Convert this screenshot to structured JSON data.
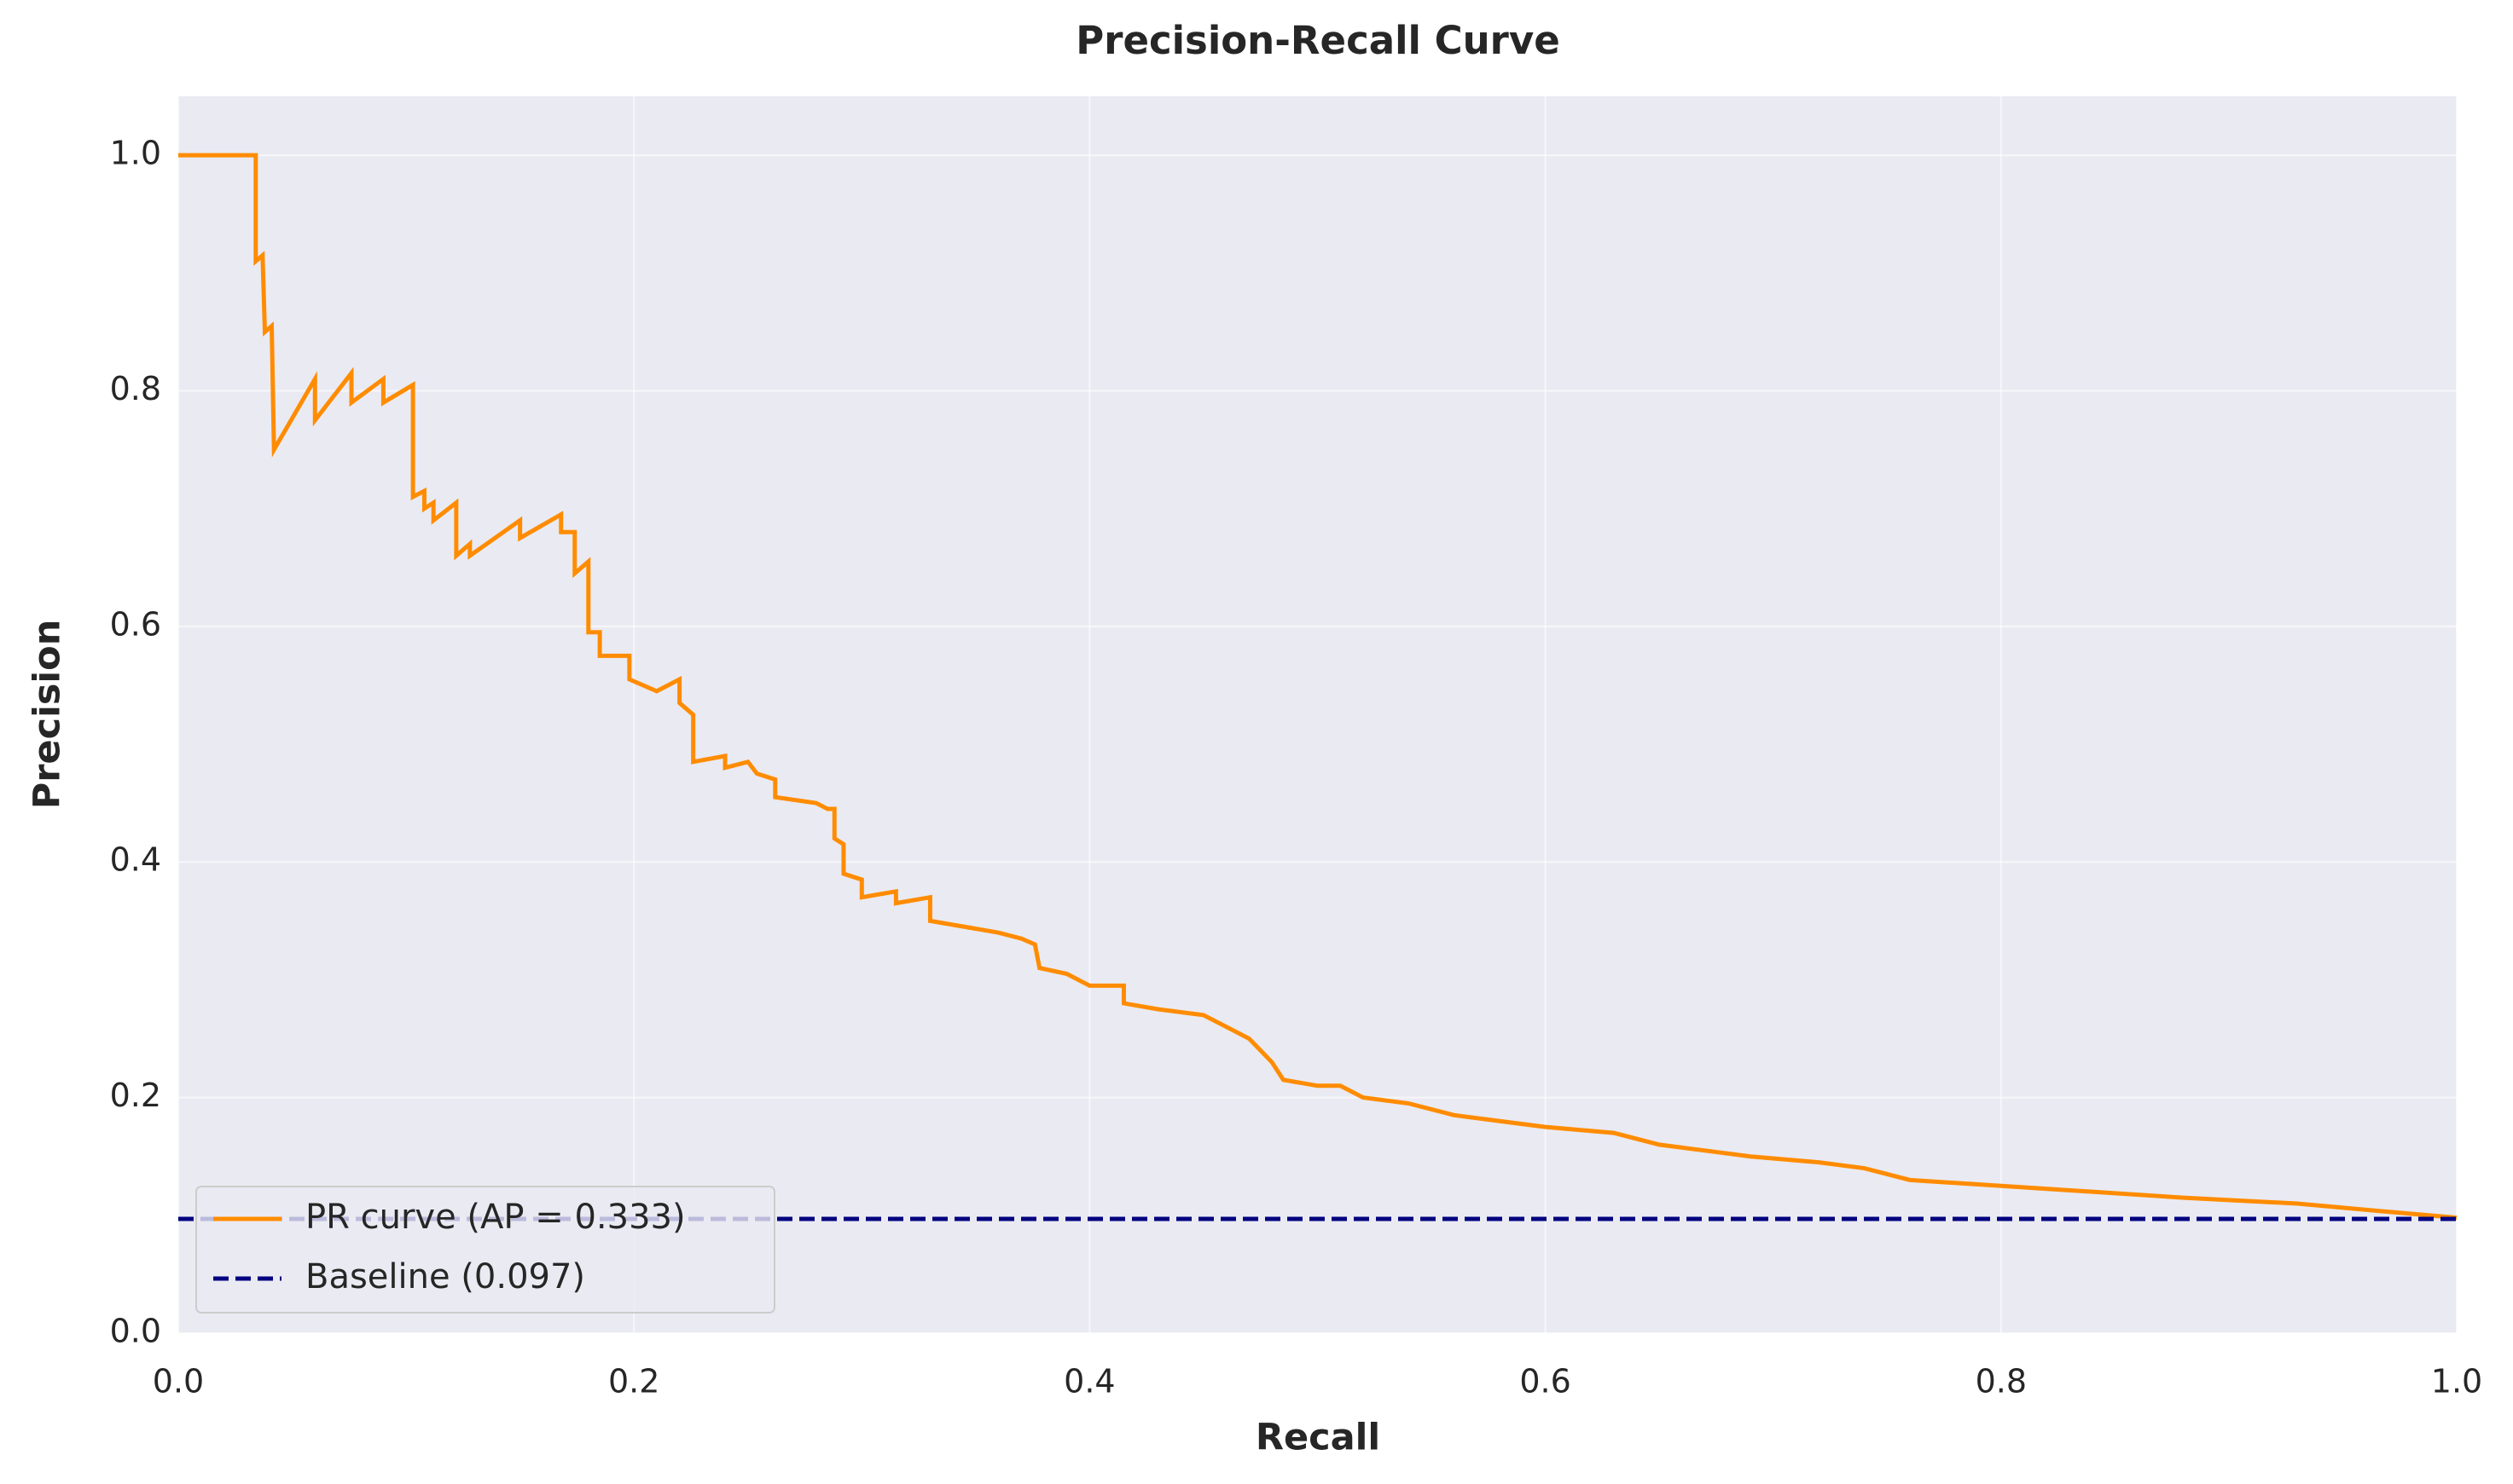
{
  "chart_data": {
    "type": "line",
    "title": "Precision-Recall Curve",
    "x_label": "Recall",
    "y_label": "Precision",
    "xlim": [
      0,
      1
    ],
    "ylim": [
      0,
      1.05
    ],
    "xticks": [
      {
        "value": 0,
        "label": "0.0"
      },
      0.2,
      0.4,
      0.6,
      0.8,
      {
        "value": 1,
        "label": "1.0"
      }
    ],
    "yticks": [
      {
        "value": 0,
        "label": "0.0"
      },
      0.2,
      0.4,
      0.6,
      0.8,
      {
        "value": 1,
        "label": "1.0"
      }
    ],
    "grid": true,
    "legend": "lower left",
    "series": [
      {
        "name": "PR curve (AP = 0.333)",
        "color": "#ff8c00",
        "dash": "solid",
        "x": [
          0,
          0.034,
          0.034,
          0.037,
          0.038,
          0.041,
          0.042,
          0.06,
          0.06,
          0.076,
          0.076,
          0.09,
          0.09,
          0.103,
          0.103,
          0.108,
          0.108,
          0.112,
          0.112,
          0.122,
          0.122,
          0.128,
          0.128,
          0.15,
          0.15,
          0.168,
          0.168,
          0.174,
          0.174,
          0.18,
          0.18,
          0.185,
          0.185,
          0.198,
          0.198,
          0.21,
          0.22,
          0.22,
          0.226,
          0.226,
          0.24,
          0.24,
          0.25,
          0.254,
          0.262,
          0.262,
          0.28,
          0.285,
          0.288,
          0.288,
          0.292,
          0.292,
          0.3,
          0.3,
          0.315,
          0.315,
          0.33,
          0.33,
          0.345,
          0.36,
          0.37,
          0.376,
          0.378,
          0.39,
          0.4,
          0.415,
          0.415,
          0.43,
          0.45,
          0.46,
          0.47,
          0.48,
          0.485,
          0.5,
          0.51,
          0.52,
          0.54,
          0.56,
          0.58,
          0.6,
          0.63,
          0.65,
          0.67,
          0.69,
          0.72,
          0.74,
          0.76,
          0.8,
          0.84,
          0.88,
          0.93,
          0.97,
          1
        ],
        "values": [
          1,
          1,
          0.91,
          0.915,
          0.85,
          0.855,
          0.75,
          0.81,
          0.775,
          0.815,
          0.79,
          0.81,
          0.79,
          0.805,
          0.71,
          0.715,
          0.7,
          0.705,
          0.69,
          0.705,
          0.66,
          0.67,
          0.66,
          0.69,
          0.675,
          0.695,
          0.68,
          0.68,
          0.645,
          0.655,
          0.595,
          0.595,
          0.575,
          0.575,
          0.555,
          0.545,
          0.555,
          0.535,
          0.525,
          0.485,
          0.49,
          0.48,
          0.485,
          0.475,
          0.47,
          0.455,
          0.45,
          0.445,
          0.445,
          0.42,
          0.415,
          0.39,
          0.385,
          0.37,
          0.375,
          0.365,
          0.37,
          0.35,
          0.345,
          0.34,
          0.335,
          0.33,
          0.31,
          0.305,
          0.295,
          0.295,
          0.28,
          0.275,
          0.27,
          0.26,
          0.25,
          0.23,
          0.215,
          0.21,
          0.21,
          0.2,
          0.195,
          0.185,
          0.18,
          0.175,
          0.17,
          0.16,
          0.155,
          0.15,
          0.145,
          0.14,
          0.13,
          0.125,
          0.12,
          0.115,
          0.11,
          0.103,
          0.098
        ]
      },
      {
        "name": "Baseline (0.097)",
        "color": "#000080",
        "dash": "dashed",
        "x": [
          0,
          1
        ],
        "values": [
          0.097,
          0.097
        ]
      }
    ]
  }
}
